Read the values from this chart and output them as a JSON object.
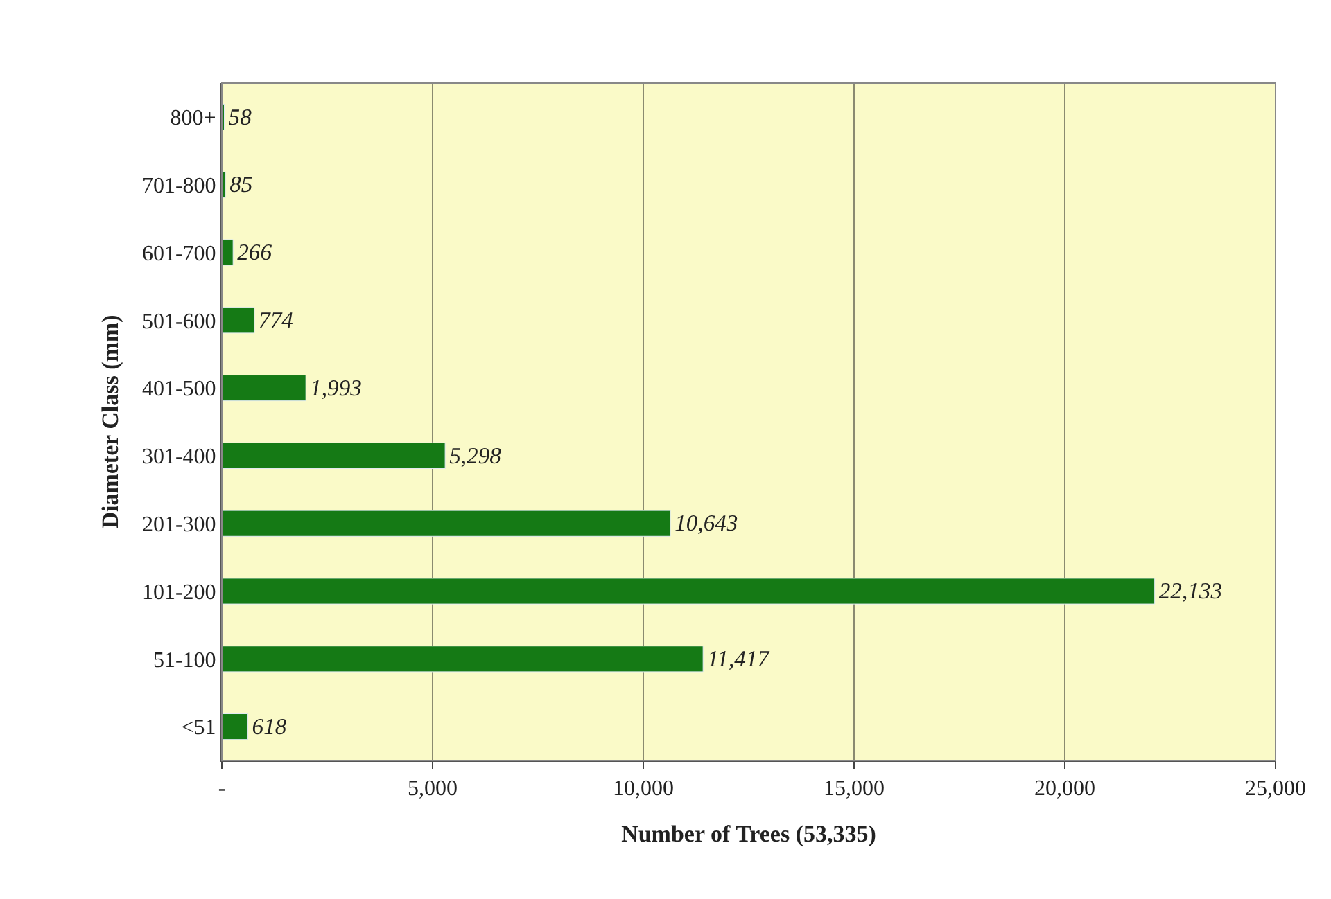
{
  "chart_data": {
    "type": "bar",
    "orientation": "horizontal",
    "xlabel": "Number of Trees (53,335)",
    "ylabel": "Diameter Class (mm)",
    "categories": [
      "800+",
      "701-800",
      "601-700",
      "501-600",
      "401-500",
      "301-400",
      "201-300",
      "101-200",
      "51-100",
      "<51"
    ],
    "values": [
      58,
      85,
      266,
      774,
      1993,
      5298,
      10643,
      22133,
      11417,
      618
    ],
    "value_labels": [
      "58",
      "85",
      "266",
      "774",
      "1,993",
      "5,298",
      "10,643",
      "22,133",
      "11,417",
      "618"
    ],
    "color": "#157a15",
    "xlim": [
      0,
      25000
    ],
    "xticks": [
      {
        "value": 0,
        "label": "-"
      },
      {
        "value": 5000,
        "label": "5,000"
      },
      {
        "value": 10000,
        "label": "10,000"
      },
      {
        "value": 15000,
        "label": "15,000"
      },
      {
        "value": 20000,
        "label": "20,000"
      },
      {
        "value": 25000,
        "label": "25,000"
      }
    ],
    "grid": "x",
    "legend": false
  }
}
